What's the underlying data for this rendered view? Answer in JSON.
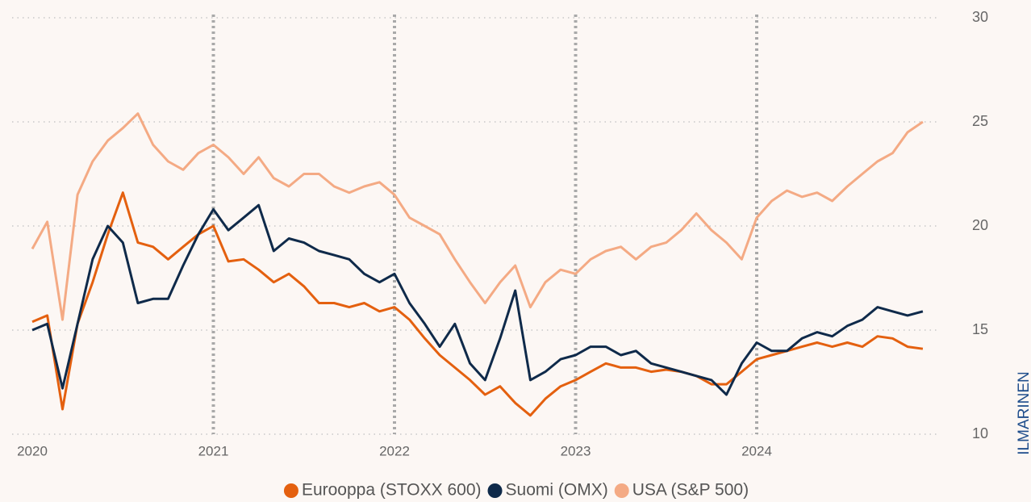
{
  "chart_data": {
    "type": "line",
    "x": [
      2020,
      2020.083,
      2020.167,
      2020.25,
      2020.333,
      2020.417,
      2020.5,
      2020.583,
      2020.667,
      2020.75,
      2020.833,
      2020.917,
      2021,
      2021.083,
      2021.167,
      2021.25,
      2021.333,
      2021.417,
      2021.5,
      2021.583,
      2021.667,
      2021.75,
      2021.833,
      2021.917,
      2022,
      2022.083,
      2022.167,
      2022.25,
      2022.333,
      2022.417,
      2022.5,
      2022.583,
      2022.667,
      2022.75,
      2022.833,
      2022.917,
      2023,
      2023.083,
      2023.167,
      2023.25,
      2023.333,
      2023.417,
      2023.5,
      2023.583,
      2023.667,
      2023.75,
      2023.833,
      2023.917,
      2024,
      2024.083,
      2024.167,
      2024.25,
      2024.333,
      2024.417,
      2024.5,
      2024.583,
      2024.667,
      2024.75,
      2024.833,
      2024.917
    ],
    "series": [
      {
        "name": "Eurooppa (STOXX 600)",
        "color": "#e4600f",
        "values": [
          15.4,
          15.7,
          11.2,
          15.3,
          17.3,
          19.6,
          21.6,
          19.2,
          19.0,
          18.4,
          19.0,
          19.6,
          20.0,
          18.3,
          18.4,
          17.9,
          17.3,
          17.7,
          17.1,
          16.3,
          16.3,
          16.1,
          16.3,
          15.9,
          16.1,
          15.5,
          14.6,
          13.8,
          13.2,
          12.6,
          11.9,
          12.3,
          11.5,
          10.9,
          11.7,
          12.3,
          12.6,
          13.0,
          13.4,
          13.2,
          13.2,
          13.0,
          13.1,
          13.0,
          12.8,
          12.4,
          12.4,
          13.0,
          13.6,
          13.8,
          14.0,
          14.2,
          14.4,
          14.2,
          14.4,
          14.2,
          14.7,
          14.6,
          14.2,
          14.1
        ]
      },
      {
        "name": "Suomi (OMX)",
        "color": "#0f2a4a",
        "values": [
          15.0,
          15.3,
          12.2,
          15.3,
          18.4,
          20.0,
          19.2,
          16.3,
          16.5,
          16.5,
          18.1,
          19.6,
          20.8,
          19.8,
          20.4,
          21.0,
          18.8,
          19.4,
          19.2,
          18.8,
          18.6,
          18.4,
          17.7,
          17.3,
          17.7,
          16.3,
          15.3,
          14.2,
          15.3,
          13.4,
          12.6,
          14.6,
          16.9,
          12.6,
          13.0,
          13.6,
          13.8,
          14.2,
          14.2,
          13.8,
          14.0,
          13.4,
          13.2,
          13.0,
          12.8,
          12.6,
          11.9,
          13.4,
          14.4,
          14.0,
          14.0,
          14.6,
          14.9,
          14.7,
          15.2,
          15.5,
          16.1,
          15.9,
          15.7,
          15.9
        ]
      },
      {
        "name": "USA (S&P 500)",
        "color": "#f4aa84",
        "values": [
          18.9,
          20.2,
          15.5,
          21.5,
          23.1,
          24.1,
          24.7,
          25.4,
          23.9,
          23.1,
          22.7,
          23.5,
          23.9,
          23.3,
          22.5,
          23.3,
          22.3,
          21.9,
          22.5,
          22.5,
          21.9,
          21.6,
          21.9,
          22.1,
          21.5,
          20.4,
          20.0,
          19.6,
          18.4,
          17.3,
          16.3,
          17.3,
          18.1,
          16.1,
          17.3,
          17.9,
          17.7,
          18.4,
          18.8,
          19.0,
          18.4,
          19.0,
          19.2,
          19.8,
          20.6,
          19.8,
          19.2,
          18.4,
          20.4,
          21.2,
          21.7,
          21.4,
          21.6,
          21.2,
          21.9,
          22.5,
          23.1,
          23.5,
          24.5,
          25.0
        ]
      }
    ],
    "xlim": [
      2020,
      2025
    ],
    "xticks": [
      2020,
      2021,
      2022,
      2023,
      2024
    ],
    "vlines": [
      2021,
      2022,
      2023,
      2024
    ],
    "ylim": [
      10,
      30
    ],
    "yticks": [
      10,
      15,
      20,
      25,
      30
    ],
    "grid": true,
    "legend": "bottom",
    "watermark": "ILMARINEN"
  }
}
